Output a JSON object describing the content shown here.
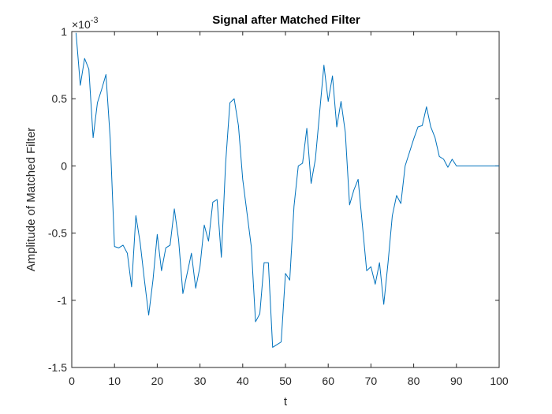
{
  "chart_data": {
    "type": "line",
    "title": "Signal after Matched Filter",
    "xlabel": "t",
    "ylabel": "Amplitude of Matched Filter",
    "exponent_label": "×10",
    "exponent_power": "-3",
    "xlim": [
      0,
      100
    ],
    "ylim": [
      -1.5,
      1
    ],
    "xticks": [
      0,
      10,
      20,
      30,
      40,
      50,
      60,
      70,
      80,
      90,
      100
    ],
    "xtick_labels": [
      "0",
      "10",
      "20",
      "30",
      "40",
      "50",
      "60",
      "70",
      "80",
      "90",
      "100"
    ],
    "yticks": [
      1,
      0.5,
      0,
      -0.5,
      -1,
      -1.5
    ],
    "ytick_labels": [
      "1",
      "0.5",
      "0",
      "-0.5",
      "-1",
      "-1.5"
    ],
    "grid": false,
    "line_color": "#0072BD",
    "series": [
      {
        "x": [
          1,
          2,
          3,
          4,
          5,
          6,
          7,
          8,
          9,
          10,
          11,
          12,
          13,
          14,
          15,
          16,
          17,
          18,
          19,
          20,
          21,
          22,
          23,
          24,
          25,
          26,
          27,
          28,
          29,
          30,
          31,
          32,
          33,
          34,
          35,
          36,
          37,
          38,
          39,
          40,
          41,
          42,
          43,
          44,
          45,
          46,
          47,
          48,
          49,
          50,
          51,
          52,
          53,
          54,
          55,
          56,
          57,
          58,
          59,
          60,
          61,
          62,
          63,
          64,
          65,
          66,
          67,
          68,
          69,
          70,
          71,
          72,
          73,
          74,
          75,
          76,
          77,
          78,
          79,
          80,
          81,
          82,
          83,
          84,
          85,
          86,
          87,
          88,
          89,
          90,
          91,
          92,
          93,
          94,
          95,
          96,
          97,
          98,
          99,
          100
        ],
        "y": [
          0.99,
          0.6,
          0.8,
          0.72,
          0.21,
          0.47,
          0.57,
          0.68,
          0.2,
          -0.6,
          -0.61,
          -0.59,
          -0.65,
          -0.9,
          -0.37,
          -0.57,
          -0.85,
          -1.11,
          -0.85,
          -0.51,
          -0.78,
          -0.61,
          -0.59,
          -0.32,
          -0.55,
          -0.95,
          -0.8,
          -0.65,
          -0.91,
          -0.75,
          -0.44,
          -0.56,
          -0.27,
          -0.25,
          -0.68,
          0.02,
          0.47,
          0.5,
          0.3,
          -0.1,
          -0.35,
          -0.6,
          -1.16,
          -1.1,
          -0.72,
          -0.72,
          -1.35,
          -1.33,
          -1.31,
          -0.8,
          -0.85,
          -0.3,
          0.0,
          0.02,
          0.28,
          -0.13,
          0.05,
          0.4,
          0.75,
          0.48,
          0.67,
          0.29,
          0.48,
          0.25,
          -0.29,
          -0.18,
          -0.1,
          -0.44,
          -0.78,
          -0.75,
          -0.88,
          -0.72,
          -1.03,
          -0.72,
          -0.37,
          -0.22,
          -0.28,
          0.0,
          0.1,
          0.2,
          0.29,
          0.3,
          0.44,
          0.29,
          0.21,
          0.07,
          0.05,
          -0.01,
          0.05,
          0.0,
          0.0,
          0.0,
          0.0,
          0.0,
          0.0,
          0.0,
          0.0,
          0.0,
          0.0,
          0.0
        ]
      }
    ]
  }
}
